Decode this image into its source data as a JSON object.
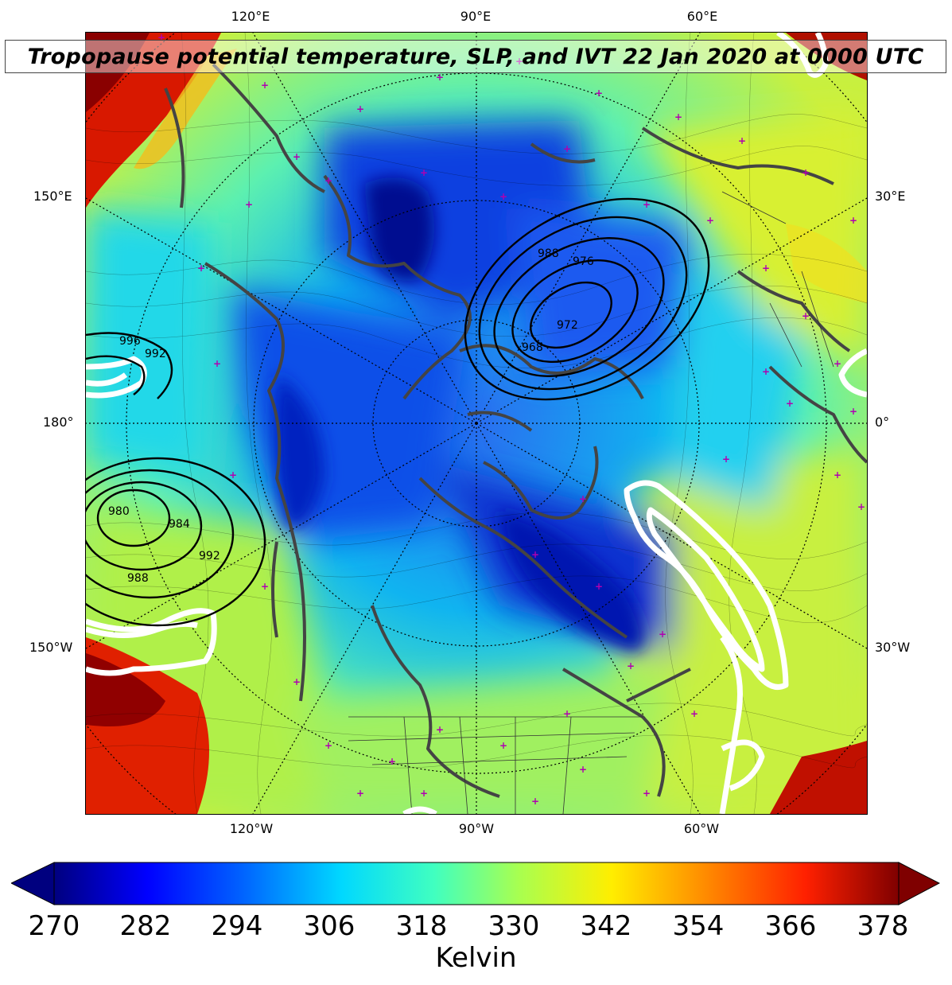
{
  "title": "Tropopause potential temperature, SLP, and IVT 22 Jan 2020 at 0000 UTC",
  "longitude_labels_top": [
    "120°E",
    "90°E",
    "60°E"
  ],
  "longitude_labels_bottom": [
    "120°W",
    "90°W",
    "60°W"
  ],
  "latitude_labels_left": [
    "150°E",
    "180°",
    "150°W"
  ],
  "latitude_labels_right": [
    "30°E",
    "0°",
    "30°W"
  ],
  "slp_contour_labels": [
    "988",
    "976",
    "972",
    "968",
    "980",
    "984",
    "992",
    "988",
    "996",
    "992"
  ],
  "colorbar": {
    "ticks": [
      "270",
      "282",
      "294",
      "306",
      "318",
      "330",
      "342",
      "354",
      "366",
      "378"
    ],
    "label": "Kelvin",
    "min": 270,
    "max": 378,
    "colormap": "jet",
    "extend": "both"
  },
  "colors": {
    "low": "#00007f",
    "mid": "#7dff7a",
    "high": "#7f0000",
    "slp_contour": "#000000",
    "ivt_contour": "#ffffff",
    "coastline": "#404040",
    "station_marker": "#b000b0"
  }
}
